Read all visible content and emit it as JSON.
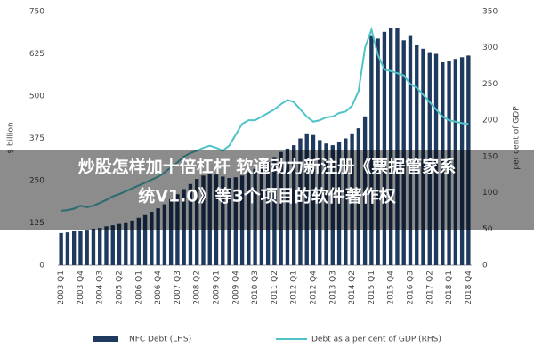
{
  "chart_data": {
    "type": "bar",
    "categories": [
      "2003 Q1",
      null,
      null,
      "2003 Q4",
      null,
      null,
      "2004 Q3",
      null,
      null,
      "2005 Q2",
      null,
      null,
      "2006 Q1",
      null,
      null,
      "2006 Q4",
      null,
      null,
      "2007 Q3",
      null,
      null,
      "2008 Q2",
      null,
      null,
      "2009 Q1",
      null,
      null,
      "2009 Q4",
      null,
      null,
      "2010 Q3",
      null,
      null,
      "2011 Q2",
      null,
      null,
      "2012 Q1",
      null,
      null,
      "2012 Q4",
      null,
      null,
      "2013 Q3",
      null,
      null,
      "2014 Q2",
      null,
      null,
      "2015 Q1",
      null,
      null,
      "2015 Q4",
      null,
      null,
      "2016 Q3",
      null,
      null,
      "2017 Q2",
      null,
      null,
      "2018 Q1",
      null,
      null,
      "2018 Q4"
    ],
    "series": [
      {
        "name": "NFC Debt (LHS)",
        "type": "bar",
        "color": "#1f3a5f",
        "values": [
          95,
          97,
          100,
          102,
          105,
          108,
          110,
          115,
          118,
          122,
          127,
          132,
          140,
          148,
          158,
          168,
          180,
          195,
          210,
          225,
          240,
          255,
          265,
          270,
          268,
          262,
          258,
          260,
          265,
          275,
          285,
          295,
          305,
          320,
          335,
          345,
          355,
          375,
          390,
          385,
          370,
          360,
          355,
          365,
          375,
          390,
          405,
          440,
          680,
          670,
          690,
          700,
          700,
          665,
          680,
          650,
          640,
          630,
          625,
          600,
          605,
          610,
          615,
          620
        ]
      },
      {
        "name": "Debt as a per cent of GDP (RHS)",
        "type": "line",
        "axis": "y2",
        "color": "#4fc3c8",
        "values": [
          75,
          76,
          78,
          82,
          80,
          82,
          86,
          90,
          95,
          98,
          102,
          106,
          110,
          114,
          118,
          122,
          128,
          135,
          142,
          150,
          155,
          158,
          162,
          165,
          162,
          158,
          165,
          180,
          195,
          200,
          200,
          205,
          210,
          215,
          222,
          228,
          225,
          215,
          205,
          198,
          200,
          204,
          205,
          210,
          212,
          220,
          240,
          300,
          325,
          290,
          270,
          268,
          265,
          262,
          250,
          245,
          235,
          225,
          215,
          205,
          200,
          198,
          196,
          195
        ]
      }
    ],
    "ylabel": "$ billion",
    "y2label": "per cent of GDP",
    "ylim": [
      0,
      750
    ],
    "yticks": [
      0,
      125,
      250,
      375,
      500,
      625,
      750
    ],
    "y2lim": [
      0,
      350
    ],
    "y2ticks": [
      0,
      50,
      100,
      150,
      200,
      250,
      300,
      350
    ]
  },
  "overlay": {
    "lines": [
      "炒股怎样加十倍杠杆 软通动力新注册《票据管家系",
      "统V1.0》等3个项目的软件著作权"
    ]
  }
}
